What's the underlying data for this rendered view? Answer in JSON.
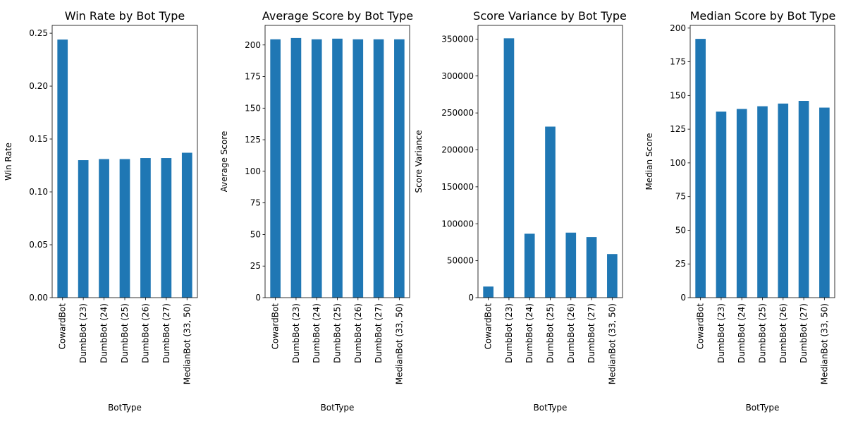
{
  "chart_data": [
    {
      "type": "bar",
      "title": "Win Rate by Bot Type",
      "xlabel": "BotType",
      "ylabel": "Win Rate",
      "categories": [
        "CowardBot",
        "DumbBot (23)",
        "DumbBot (24)",
        "DumbBot (25)",
        "DumbBot (26)",
        "DumbBot (27)",
        "MedianBot (33, 50)"
      ],
      "values": [
        0.244,
        0.13,
        0.131,
        0.131,
        0.132,
        0.132,
        0.137
      ],
      "ylim": [
        0,
        0.2574
      ],
      "yticks": [
        0.0,
        0.05,
        0.1,
        0.15,
        0.2,
        0.25
      ],
      "ytick_labels": [
        "0.00",
        "0.05",
        "0.10",
        "0.15",
        "0.20",
        "0.25"
      ],
      "legend": "none",
      "grid": false
    },
    {
      "type": "bar",
      "title": "Average Score by Bot Type",
      "xlabel": "BotType",
      "ylabel": "Average Score",
      "categories": [
        "CowardBot",
        "DumbBot (23)",
        "DumbBot (24)",
        "DumbBot (25)",
        "DumbBot (26)",
        "DumbBot (27)",
        "MedianBot (33, 50)"
      ],
      "values": [
        204.5,
        205.5,
        204.5,
        205,
        204.5,
        204.5,
        204.5
      ],
      "ylim": [
        0,
        215.5
      ],
      "yticks": [
        0,
        25,
        50,
        75,
        100,
        125,
        150,
        175,
        200
      ],
      "ytick_labels": [
        "0",
        "25",
        "50",
        "75",
        "100",
        "125",
        "150",
        "175",
        "200"
      ],
      "legend": "none",
      "grid": false
    },
    {
      "type": "bar",
      "title": "Score Variance by Bot Type",
      "xlabel": "BotType",
      "ylabel": "Score Variance",
      "categories": [
        "CowardBot",
        "DumbBot (23)",
        "DumbBot (24)",
        "DumbBot (25)",
        "DumbBot (26)",
        "DumbBot (27)",
        "MedianBot (33, 50)"
      ],
      "values": [
        15000,
        351000,
        86500,
        231500,
        88000,
        82000,
        59000
      ],
      "ylim": [
        0,
        368500
      ],
      "yticks": [
        0,
        50000,
        100000,
        150000,
        200000,
        250000,
        300000,
        350000
      ],
      "ytick_labels": [
        "0",
        "50000",
        "100000",
        "150000",
        "200000",
        "250000",
        "300000",
        "350000"
      ],
      "legend": "none",
      "grid": false
    },
    {
      "type": "bar",
      "title": "Median Score by Bot Type",
      "xlabel": "BotType",
      "ylabel": "Median Score",
      "categories": [
        "CowardBot",
        "DumbBot (23)",
        "DumbBot (24)",
        "DumbBot (25)",
        "DumbBot (26)",
        "DumbBot (27)",
        "MedianBot (33, 50)"
      ],
      "values": [
        192,
        138,
        140,
        142,
        144,
        146,
        141
      ],
      "ylim": [
        0,
        202
      ],
      "yticks": [
        0,
        25,
        50,
        75,
        100,
        125,
        150,
        175,
        200
      ],
      "ytick_labels": [
        "0",
        "25",
        "50",
        "75",
        "100",
        "125",
        "150",
        "175",
        "200"
      ],
      "legend": "none",
      "grid": false
    }
  ],
  "colors": {
    "bar": "#1f77b4",
    "axes": "#000000",
    "background": "#ffffff"
  }
}
